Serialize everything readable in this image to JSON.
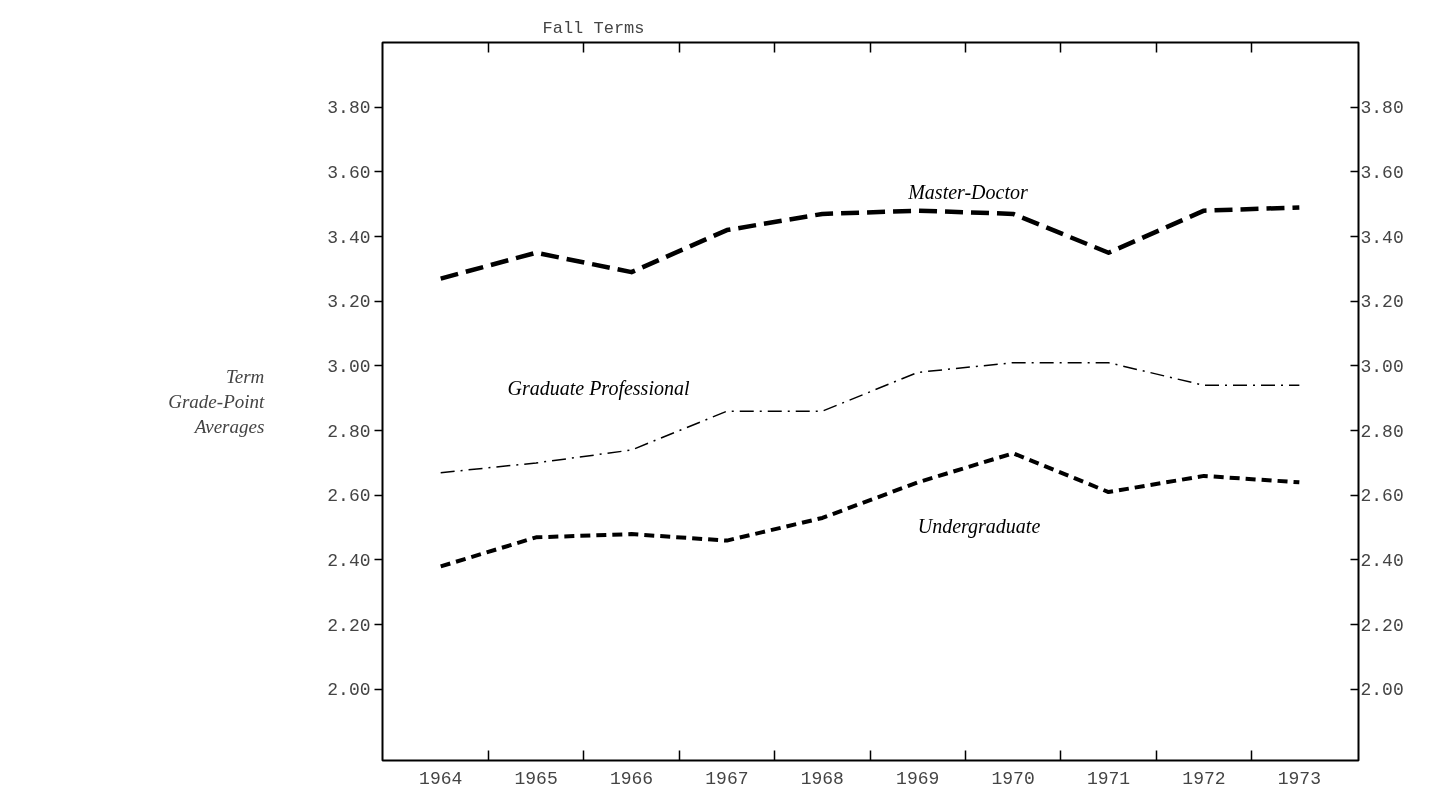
{
  "chart_data": {
    "type": "line",
    "title": "Fall Terms",
    "ylabel": "Term\nGrade-Point\nAverages",
    "x": [
      1964,
      1965,
      1966,
      1967,
      1968,
      1969,
      1970,
      1971,
      1972,
      1973
    ],
    "series": [
      {
        "name": "Master-Doctor",
        "color": "#000000",
        "line_style": "dashed",
        "values": [
          3.27,
          3.35,
          3.29,
          3.42,
          3.47,
          3.48,
          3.47,
          3.35,
          3.48,
          3.49
        ]
      },
      {
        "name": "Graduate Professional",
        "color": "#000000",
        "line_style": "dashed",
        "values": [
          2.67,
          2.7,
          2.74,
          2.86,
          2.86,
          2.98,
          3.01,
          3.01,
          2.94,
          2.94
        ]
      },
      {
        "name": "Undergraduate",
        "color": "#000000",
        "line_style": "dashed",
        "values": [
          2.38,
          2.47,
          2.48,
          2.46,
          2.53,
          2.64,
          2.73,
          2.61,
          2.66,
          2.64
        ]
      }
    ],
    "xlim": [
      1963.39,
      1973.62
    ],
    "ylim": [
      1.78,
      4.0
    ],
    "y2lim": [
      1.78,
      4.0
    ],
    "xticks": [
      1964,
      1965,
      1966,
      1967,
      1968,
      1969,
      1970,
      1971,
      1972,
      1973,
      {
        "value": 1964.5,
        "label": null
      },
      {
        "value": 1965.5,
        "label": null
      },
      {
        "value": 1966.5,
        "label": null
      },
      {
        "value": 1967.5,
        "label": null
      },
      {
        "value": 1968.5,
        "label": null
      },
      {
        "value": 1969.5,
        "label": null
      },
      {
        "value": 1970.5,
        "label": null
      },
      {
        "value": 1971.5,
        "label": null
      },
      {
        "value": 1972.5,
        "label": null
      }
    ],
    "yticks": [
      {
        "value": 2.0,
        "label": "2.00"
      },
      {
        "value": 2.2,
        "label": "2.20"
      },
      {
        "value": 2.4,
        "label": "2.40"
      },
      {
        "value": 2.6,
        "label": "2.60"
      },
      {
        "value": 2.8,
        "label": "2.80"
      },
      {
        "value": 3.0,
        "label": "3.00"
      },
      {
        "value": 3.2,
        "label": "3.20"
      },
      {
        "value": 3.4,
        "label": "3.40"
      },
      {
        "value": 3.6,
        "label": "3.60"
      },
      {
        "value": 3.8,
        "label": "3.80"
      }
    ],
    "y2ticks": [
      {
        "value": 2.0,
        "label": "2.00"
      },
      {
        "value": 2.2,
        "label": "2.20"
      },
      {
        "value": 2.4,
        "label": "2.40"
      },
      {
        "value": 2.6,
        "label": "2.60"
      },
      {
        "value": 2.8,
        "label": "2.80"
      },
      {
        "value": 3.0,
        "label": "3.00"
      },
      {
        "value": 3.2,
        "label": "3.20"
      },
      {
        "value": 3.4,
        "label": "3.40"
      },
      {
        "value": 3.6,
        "label": "3.60"
      },
      {
        "value": 3.8,
        "label": "3.80"
      }
    ],
    "grid": false,
    "marker": "none"
  }
}
